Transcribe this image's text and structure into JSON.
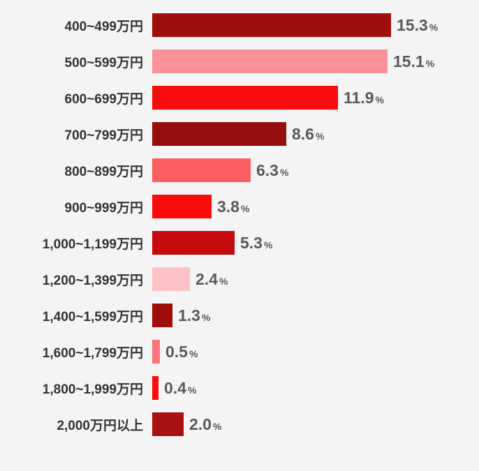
{
  "chart_data": {
    "type": "bar",
    "orientation": "horizontal",
    "title": "",
    "xlabel": "",
    "ylabel": "",
    "unit": "%",
    "grid": false,
    "legend": false,
    "xlim": [
      0,
      16
    ],
    "categories": [
      "400~499万円",
      "500~599万円",
      "600~699万円",
      "700~799万円",
      "800~899万円",
      "900~999万円",
      "1,000~1,199万円",
      "1,200~1,399万円",
      "1,400~1,599万円",
      "1,600~1,799万円",
      "1,800~1,999万円",
      "2,000万円以上"
    ],
    "values": [
      15.3,
      15.1,
      11.9,
      8.6,
      6.3,
      3.8,
      5.3,
      2.4,
      1.3,
      0.5,
      0.4,
      2.0
    ],
    "value_labels": [
      "15.3",
      "15.1",
      "11.9",
      "8.6",
      "6.3",
      "3.8",
      "5.3",
      "2.4",
      "1.3",
      "0.5",
      "0.4",
      "2.0"
    ],
    "percent_sign": "%",
    "bar_colors": [
      "#a00d0d",
      "#fb9199",
      "#f90b0b",
      "#970e0e",
      "#fb5e60",
      "#f90b0b",
      "#c50a0d",
      "#fdc2c6",
      "#9e0c0c",
      "#f9747b",
      "#f90b0b",
      "#a81111"
    ]
  },
  "colors": {
    "background": "#f4f4f5",
    "label_text": "#333333",
    "value_text": "#595959"
  }
}
